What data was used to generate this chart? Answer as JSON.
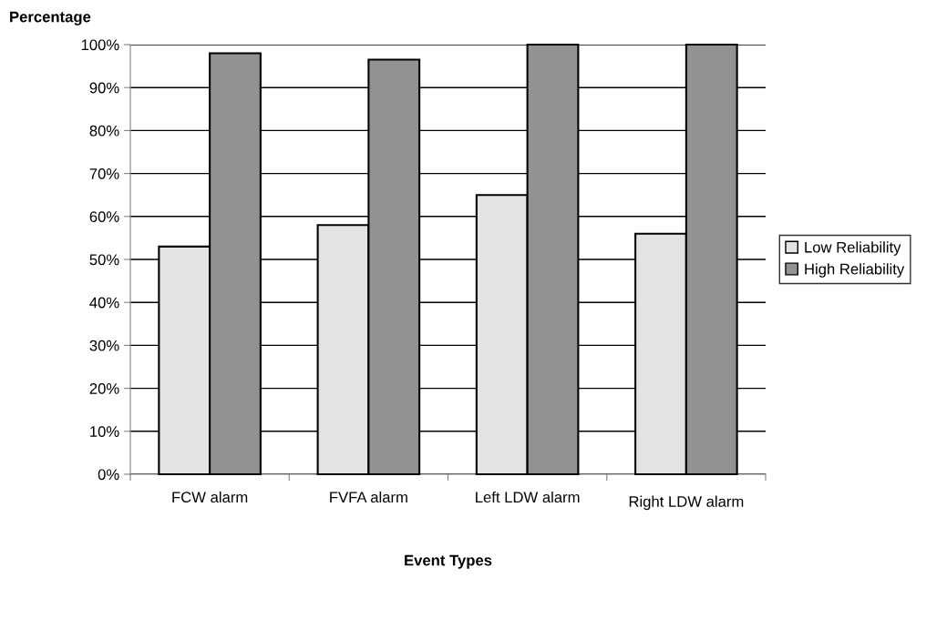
{
  "chart_data": {
    "type": "bar",
    "ylabel": "Percentage",
    "xlabel": "Event Types",
    "categories": [
      "FCW alarm",
      "FVFA alarm",
      "Left LDW alarm",
      "Right LDW alarm"
    ],
    "series": [
      {
        "name": "Low Reliability",
        "color": "#e3e3e3",
        "values": [
          53,
          58,
          65,
          56
        ]
      },
      {
        "name": "High Reliability",
        "color": "#929292",
        "values": [
          98,
          96.5,
          100,
          100
        ]
      }
    ],
    "ylim": [
      0,
      100
    ],
    "yticks": [
      {
        "value": 0,
        "label": "0%"
      },
      {
        "value": 10,
        "label": "10%"
      },
      {
        "value": 20,
        "label": "20%"
      },
      {
        "value": 30,
        "label": "30%"
      },
      {
        "value": 40,
        "label": "40%"
      },
      {
        "value": 50,
        "label": "50%"
      },
      {
        "value": 60,
        "label": "60%"
      },
      {
        "value": 70,
        "label": "70%"
      },
      {
        "value": 80,
        "label": "80%"
      },
      {
        "value": 90,
        "label": "90%"
      },
      {
        "value": 100,
        "label": "100%"
      }
    ],
    "grid": "y",
    "legend": "right"
  }
}
